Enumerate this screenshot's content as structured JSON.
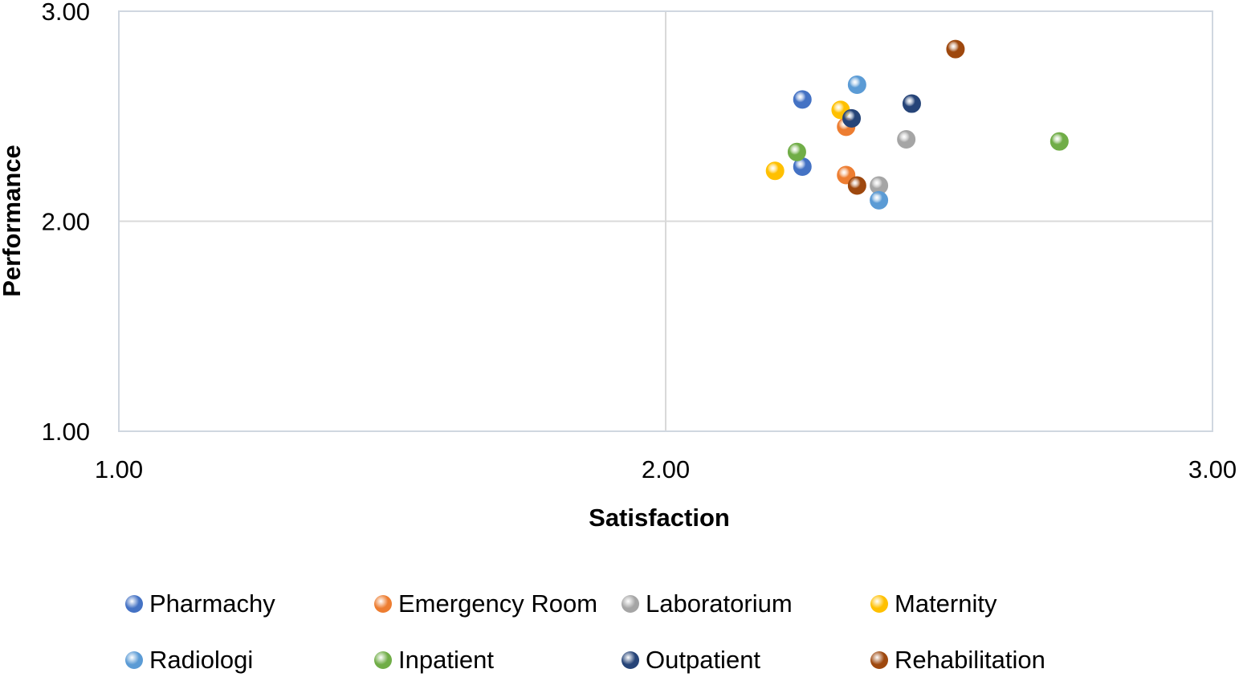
{
  "chart_data": {
    "type": "scatter",
    "title": "",
    "xlabel": "Satisfaction",
    "ylabel": "Performance",
    "xlim": [
      1.0,
      3.0
    ],
    "ylim": [
      1.0,
      3.0
    ],
    "xticks": [
      "1.00",
      "2.00",
      "3.00"
    ],
    "yticks": [
      "1.00",
      "2.00",
      "3.00"
    ],
    "grid": true,
    "legend_position": "bottom",
    "series": [
      {
        "name": "Pharmachy",
        "color": "#4472C4",
        "points": [
          {
            "x": 2.25,
            "y": 2.58
          },
          {
            "x": 2.25,
            "y": 2.26
          }
        ]
      },
      {
        "name": "Emergency Room",
        "color": "#ED7D31",
        "points": [
          {
            "x": 2.33,
            "y": 2.45
          },
          {
            "x": 2.33,
            "y": 2.22
          }
        ]
      },
      {
        "name": "Laboratorium",
        "color": "#A5A5A5",
        "points": [
          {
            "x": 2.44,
            "y": 2.39
          },
          {
            "x": 2.39,
            "y": 2.17
          }
        ]
      },
      {
        "name": "Maternity",
        "color": "#FFC000",
        "points": [
          {
            "x": 2.32,
            "y": 2.53
          },
          {
            "x": 2.2,
            "y": 2.24
          }
        ]
      },
      {
        "name": "Radiologi",
        "color": "#5B9BD5",
        "points": [
          {
            "x": 2.35,
            "y": 2.65
          },
          {
            "x": 2.39,
            "y": 2.1
          }
        ]
      },
      {
        "name": "Inpatient",
        "color": "#70AD47",
        "points": [
          {
            "x": 2.72,
            "y": 2.38
          },
          {
            "x": 2.24,
            "y": 2.33
          }
        ]
      },
      {
        "name": "Outpatient",
        "color": "#264478",
        "points": [
          {
            "x": 2.45,
            "y": 2.56
          },
          {
            "x": 2.34,
            "y": 2.49
          }
        ]
      },
      {
        "name": "Rehabilitation",
        "color": "#9E480E",
        "points": [
          {
            "x": 2.53,
            "y": 2.82
          },
          {
            "x": 2.35,
            "y": 2.17
          }
        ]
      }
    ]
  }
}
